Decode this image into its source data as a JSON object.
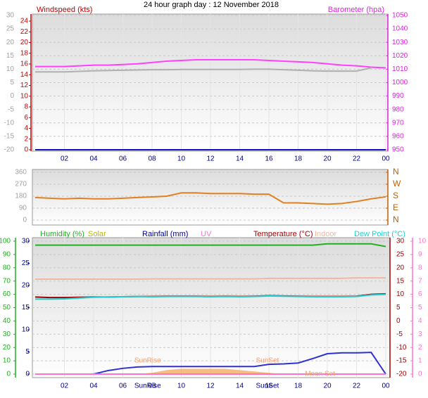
{
  "title": "24 hour graph day : 12 November 2018",
  "chart_data": [
    {
      "type": "line",
      "x": [
        0,
        1,
        2,
        3,
        4,
        5,
        6,
        7,
        8,
        9,
        10,
        11,
        12,
        13,
        14,
        15,
        16,
        17,
        18,
        19,
        20,
        21,
        22,
        23,
        24
      ],
      "xlim": [
        0,
        24
      ],
      "xticks": [
        {
          "value": 2,
          "label": "02"
        },
        {
          "value": 4,
          "label": "04"
        },
        {
          "value": 6,
          "label": "06"
        },
        {
          "value": 8,
          "label": "08"
        },
        10,
        12,
        14,
        16,
        18,
        20,
        22,
        {
          "value": 24,
          "label": "00"
        }
      ],
      "ylim": [
        0,
        24
      ],
      "yticks": [
        0,
        2,
        4,
        6,
        8,
        10,
        12,
        14,
        16,
        18,
        20,
        22,
        24
      ],
      "y3lim": [
        -20,
        30
      ],
      "y3ticks": [
        -20,
        -15,
        -10,
        -5,
        0,
        5,
        10,
        15,
        20,
        25,
        30
      ],
      "y2lim": [
        950,
        1050
      ],
      "y2ticks": [
        950,
        960,
        970,
        980,
        990,
        1000,
        1010,
        1020,
        1030,
        1040,
        1050
      ],
      "grid": true,
      "series": [
        {
          "name": "Windspeed (kts)",
          "color": "#1010c0",
          "axis": "y",
          "values": [
            0,
            0,
            0,
            0,
            0,
            0,
            0,
            0,
            0,
            0,
            0,
            0,
            0,
            0,
            0,
            0,
            0,
            0,
            0,
            0,
            0,
            0,
            0,
            0,
            0
          ]
        },
        {
          "name": "Barometer (hpa)",
          "color": "#ff40ff",
          "axis": "y2",
          "values": [
            1012,
            1012,
            1012,
            1012.5,
            1013,
            1013,
            1013.5,
            1014,
            1015,
            1016,
            1016.5,
            1017,
            1017,
            1017,
            1017,
            1017,
            1016.5,
            1016,
            1015.5,
            1015,
            1014,
            1013,
            1012.5,
            1011.5,
            1011
          ]
        },
        {
          "color": "#b0b0b0",
          "axis": "y3",
          "values": [
            9,
            9,
            9,
            9.2,
            9.4,
            9.5,
            9.6,
            9.7,
            9.8,
            9.8,
            9.9,
            9.9,
            9.9,
            9.9,
            9.9,
            10,
            10,
            9.8,
            9.6,
            9.4,
            9.3,
            9.3,
            9.3,
            10.5,
            null
          ]
        }
      ]
    },
    {
      "type": "line",
      "x": [
        0,
        1,
        2,
        3,
        4,
        5,
        6,
        7,
        8,
        9,
        10,
        11,
        12,
        13,
        14,
        15,
        16,
        17,
        18,
        19,
        20,
        21,
        22,
        23,
        24
      ],
      "xlim": [
        0,
        24
      ],
      "ylim": [
        0,
        360
      ],
      "yticks": [
        0,
        90,
        180,
        270,
        360
      ],
      "y2lim": [
        0,
        360
      ],
      "y2ticks": [
        {
          "value": 0,
          "label": "N"
        },
        {
          "value": 90,
          "label": "E"
        },
        {
          "value": 180,
          "label": "S"
        },
        {
          "value": 270,
          "label": "W"
        },
        {
          "value": 360,
          "label": "N"
        }
      ],
      "series": [
        {
          "color": "#e08020",
          "axis": "y",
          "values": [
            170,
            165,
            160,
            165,
            160,
            160,
            165,
            170,
            175,
            180,
            205,
            205,
            200,
            200,
            200,
            195,
            195,
            130,
            130,
            125,
            120,
            125,
            140,
            160,
            175
          ]
        }
      ]
    },
    {
      "type": "line",
      "x": [
        0,
        1,
        2,
        3,
        4,
        5,
        6,
        7,
        8,
        9,
        10,
        11,
        12,
        13,
        14,
        15,
        16,
        17,
        18,
        19,
        20,
        21,
        22,
        23,
        24
      ],
      "xlim": [
        0,
        24
      ],
      "xticks": [
        {
          "value": 2,
          "label": "02"
        },
        {
          "value": 4,
          "label": "04"
        },
        {
          "value": 6,
          "label": "06"
        },
        {
          "value": 8,
          "label": "08"
        },
        10,
        12,
        14,
        16,
        18,
        20,
        22,
        {
          "value": 24,
          "label": "00"
        }
      ],
      "ylim": [
        0,
        100
      ],
      "yticks": [
        0,
        10,
        20,
        30,
        40,
        50,
        60,
        70,
        80,
        90,
        100
      ],
      "rain_ylim": [
        0,
        30
      ],
      "rain_yticks": [
        0,
        5,
        10,
        15,
        20,
        25,
        30
      ],
      "y2lim": [
        -20,
        30
      ],
      "y2ticks": [
        -20,
        -15,
        -10,
        -5,
        0,
        5,
        10,
        15,
        20,
        25,
        30
      ],
      "uv_ylim": [
        0,
        10
      ],
      "uv_yticks": [
        0,
        1,
        2,
        3,
        4,
        5,
        6,
        7,
        8,
        9,
        10
      ],
      "grid": true,
      "series": [
        {
          "name": "Humidity (%)",
          "color": "#20b020",
          "axis": "y",
          "values": [
            97,
            97,
            97,
            97,
            97,
            97,
            97,
            97,
            97,
            97,
            97,
            97,
            97,
            97,
            97,
            97,
            97,
            97,
            97,
            97,
            98,
            98,
            98,
            98,
            96
          ]
        },
        {
          "name": "Solar",
          "color": "#b8b800",
          "fill": "#f5b06a",
          "kind": "area",
          "axis": "y",
          "values": [
            0,
            0,
            0,
            0,
            0,
            0,
            0,
            0,
            1,
            3,
            4,
            4,
            4,
            4,
            3,
            2,
            1,
            0,
            0,
            0,
            0,
            0,
            0,
            0,
            0
          ]
        },
        {
          "name": "Rainfall (mm)",
          "color": "#000090",
          "line_color": "#3030d0",
          "axis": "rain",
          "values": [
            0,
            0,
            0,
            0,
            0,
            0.8,
            1.3,
            1.6,
            1.7,
            1.7,
            1.7,
            1.7,
            1.7,
            1.7,
            1.7,
            1.7,
            2.2,
            2.3,
            2.5,
            3.5,
            4.6,
            4.8,
            4.8,
            4.9,
            0
          ]
        },
        {
          "name": "UV",
          "color": "#ff70d0",
          "axis": "uv",
          "values": [
            0,
            0,
            0,
            0,
            0,
            0,
            0,
            0,
            0,
            0,
            0,
            0,
            0,
            0,
            0,
            0,
            0,
            0,
            0,
            0,
            0,
            0,
            0,
            0,
            0
          ]
        },
        {
          "name": "Temperature (°C)",
          "color": "#a00000",
          "axis": "y2",
          "values": [
            9,
            8.8,
            8.8,
            8.9,
            9,
            9,
            9.1,
            9.2,
            9.2,
            9.3,
            9.3,
            9.3,
            9.2,
            9.3,
            9.2,
            9.3,
            9.5,
            9.4,
            9.3,
            9.2,
            9.2,
            9.2,
            9.3,
            10,
            10.2
          ]
        },
        {
          "name": "Indoor",
          "color": "#f0b8a0",
          "axis": "y2",
          "values": [
            15.7,
            15.7,
            15.7,
            15.7,
            15.7,
            15.7,
            15.7,
            15.7,
            15.8,
            15.8,
            15.8,
            15.8,
            15.8,
            15.8,
            15.8,
            15.8,
            16,
            16,
            16,
            16,
            16,
            16,
            16.2,
            16.2,
            16.2
          ]
        },
        {
          "name": "Dew Point (°C)",
          "color": "#20d0d0",
          "axis": "y2",
          "values": [
            8.2,
            8.2,
            8.3,
            8.6,
            8.9,
            9,
            9.1,
            9.2,
            9.1,
            9.2,
            9.2,
            9.2,
            9.1,
            9.2,
            9.1,
            9.2,
            9.4,
            9.3,
            9.2,
            9.1,
            9.1,
            9.1,
            9.2,
            9.8,
            10
          ]
        }
      ],
      "events": [
        {
          "label": "SunRise",
          "x": 7.7
        },
        {
          "label": "SunSet",
          "x": 15.9
        },
        {
          "label": "Moon Set",
          "x": 19.5
        }
      ],
      "event_ticks": [
        {
          "label": "SunRise",
          "x": 7.7
        },
        {
          "label": "SunSet",
          "x": 15.9
        }
      ]
    }
  ]
}
